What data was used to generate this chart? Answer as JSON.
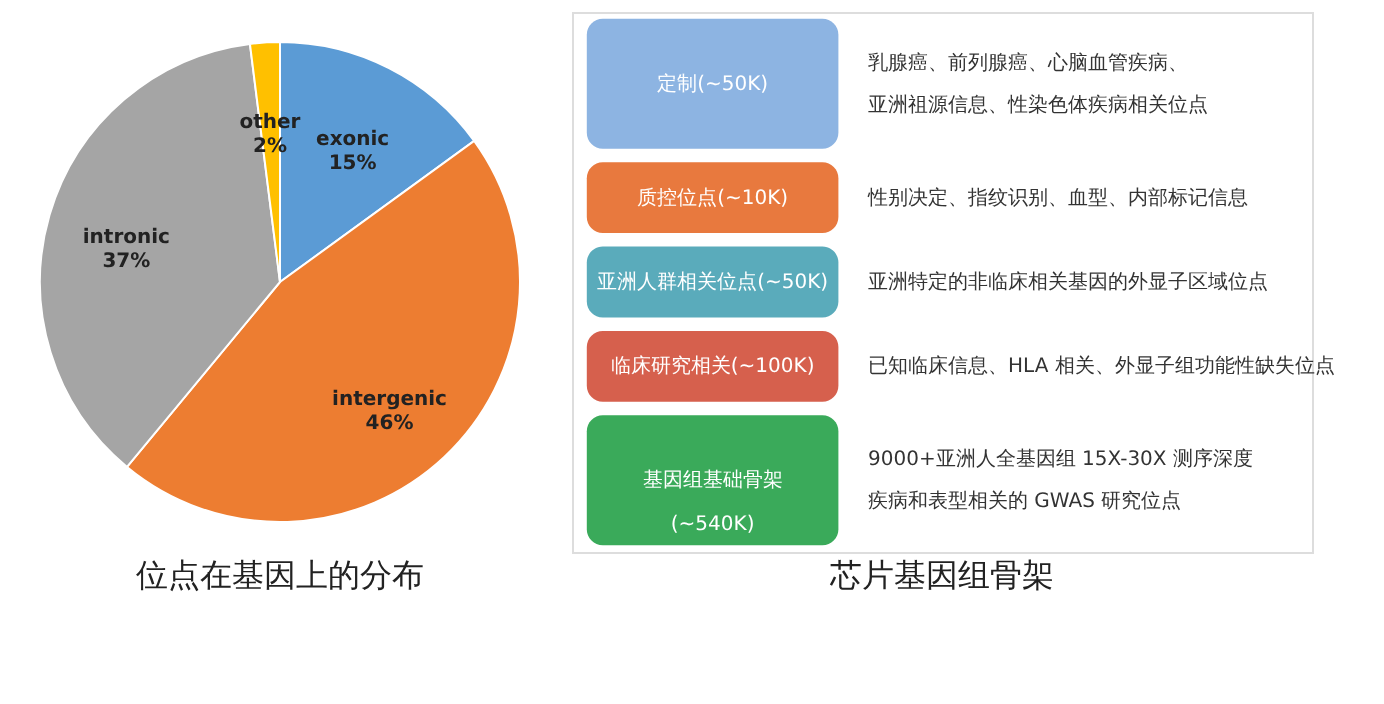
{
  "chart_data": [
    {
      "type": "pie",
      "title": "位点在基因上的分布",
      "categories": [
        "exonic",
        "intergenic",
        "intronic",
        "other"
      ],
      "values": [
        15,
        46,
        37,
        2
      ],
      "value_labels": [
        "15%",
        "46%",
        "37%",
        "2%"
      ],
      "colors": [
        "#5b9bd5",
        "#ed7d31",
        "#a5a5a5",
        "#ffc000"
      ],
      "legend": false
    },
    {
      "type": "other",
      "title": "芯片基因组骨架",
      "categories": [
        "定制(~50K)",
        "质控位点(~10K)",
        "亚洲人群相关位点(~50K)",
        "临床研究相关(~100K)",
        "基因组基础骨架\n(~540K)"
      ],
      "colors": [
        "#8db4e2",
        "#e8793e",
        "#5aabbb",
        "#d6604d",
        "#3aaa5a"
      ],
      "annotations": [
        {
          "text": "乳腺癌、前列腺癌、心脑血管疾病、",
          "y": "定制(~50K)"
        },
        {
          "text": "亚洲祖源信息、性染色体疾病相关位点",
          "y": "定制(~50K)"
        },
        {
          "text": "性别决定、指纹识别、血型、内部标记信息",
          "y": "质控位点(~10K)"
        },
        {
          "text": "亚洲特定的非临床相关基因的外显子区域位点",
          "y": "亚洲人群相关位点(~50K)"
        },
        {
          "text": "已知临床信息、HLA 相关、外显子组功能性缺失位点",
          "y": "临床研究相关(~100K)"
        },
        {
          "text": "9000+亚洲人全基因组 15X-30X 测序深度",
          "y": "基因组基础骨架\n(~540K)"
        },
        {
          "text": "疾病和表型相关的 GWAS 研究位点",
          "y": "基因组基础骨架\n(~540K)"
        }
      ]
    }
  ]
}
